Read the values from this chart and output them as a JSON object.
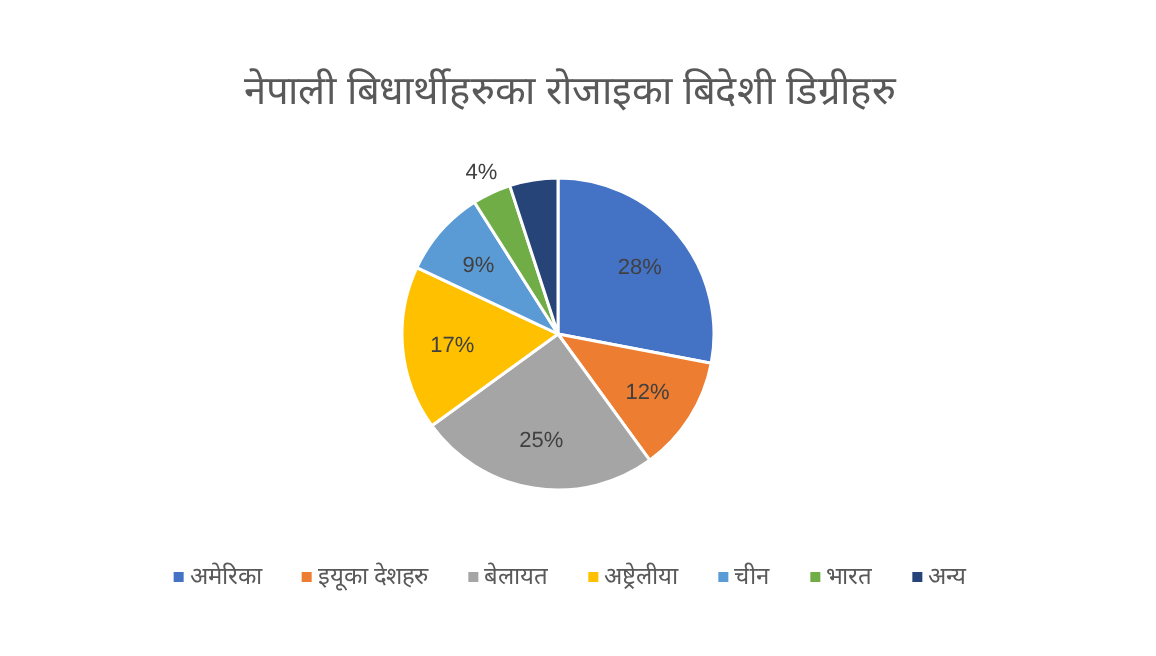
{
  "chart_data": {
    "type": "pie",
    "title": "नेपाली बिधार्थीहरुका रोजाइका बिदेशी डिग्रीहरु",
    "categories": [
      "अमेरिका",
      "इयूका देशहरु",
      "बेलायत",
      "अष्ट्रेलीया",
      "चीन",
      "भारत",
      "अन्य"
    ],
    "values": [
      28,
      12,
      25,
      17,
      9,
      4,
      5
    ],
    "colors": [
      "#4472c4",
      "#ed7d31",
      "#a5a5a5",
      "#ffc000",
      "#5b9bd5",
      "#70ad47",
      "#264478"
    ],
    "value_labels": [
      "28%",
      "12%",
      "25%",
      "17%",
      "9%",
      "4%",
      null
    ],
    "legend": "bottom"
  }
}
